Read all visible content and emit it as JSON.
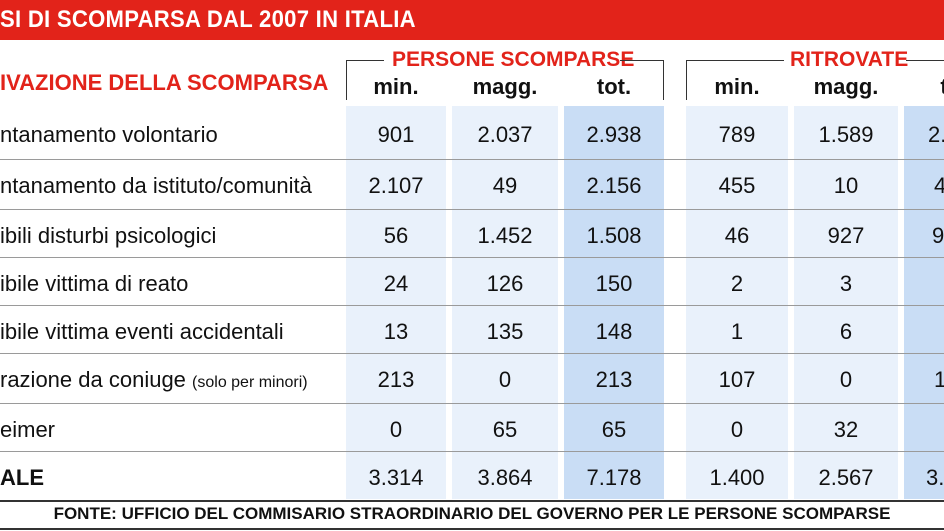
{
  "title": "SI DI SCOMPARSA DAL 2007 IN ITALIA",
  "groups": {
    "persone": "PERSONE SCOMPARSE",
    "ritrovate": "RITROVATE"
  },
  "motive_header": "IVAZIONE DELLA SCOMPARSA",
  "columns": {
    "min": "min.",
    "magg": "magg.",
    "tot": "tot.",
    "min2": "min.",
    "magg2": "magg.",
    "tot2": "t"
  },
  "rows": [
    {
      "label": "ntanamento volontario",
      "small": "",
      "p_min": "901",
      "p_magg": "2.037",
      "p_tot": "2.938",
      "r_min": "789",
      "r_magg": "1.589",
      "r_tot": "2."
    },
    {
      "label": "ntanamento da istituto/comunità",
      "small": "",
      "p_min": "2.107",
      "p_magg": "49",
      "p_tot": "2.156",
      "r_min": "455",
      "r_magg": "10",
      "r_tot": "4"
    },
    {
      "label": "ibili disturbi psicologici",
      "small": "",
      "p_min": "56",
      "p_magg": "1.452",
      "p_tot": "1.508",
      "r_min": "46",
      "r_magg": "927",
      "r_tot": "9"
    },
    {
      "label": "ibile vittima di reato",
      "small": "",
      "p_min": "24",
      "p_magg": "126",
      "p_tot": "150",
      "r_min": "2",
      "r_magg": "3",
      "r_tot": ""
    },
    {
      "label": "ibile vittima eventi accidentali",
      "small": "",
      "p_min": "13",
      "p_magg": "135",
      "p_tot": "148",
      "r_min": "1",
      "r_magg": "6",
      "r_tot": ""
    },
    {
      "label": "razione da coniuge ",
      "small": "(solo per minori)",
      "p_min": "213",
      "p_magg": "0",
      "p_tot": "213",
      "r_min": "107",
      "r_magg": "0",
      "r_tot": "1"
    },
    {
      "label": "eimer",
      "small": "",
      "p_min": "0",
      "p_magg": "65",
      "p_tot": "65",
      "r_min": "0",
      "r_magg": "32",
      "r_tot": ""
    },
    {
      "label": "ALE",
      "small": "",
      "p_min": "3.314",
      "p_magg": "3.864",
      "p_tot": "7.178",
      "r_min": "1.400",
      "r_magg": "2.567",
      "r_tot": "3."
    }
  ],
  "source": "FONTE: UFFICIO DEL COMMISARIO STRAORDINARIO DEL GOVERNO PER LE PERSONE SCOMPARSE",
  "colors": {
    "red": "#e2231a",
    "light_blue": "#e9f1fb",
    "dark_blue": "#c9ddf5"
  }
}
